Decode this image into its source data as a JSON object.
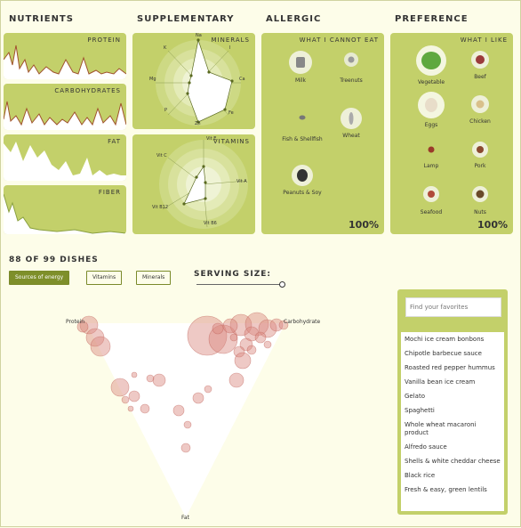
{
  "sections": {
    "nutrients": "NUTRIENTS",
    "supplementary": "SUPPLEMENTARY",
    "allergic": "ALLERGIC",
    "preference": "PREFERENCE"
  },
  "nutrient_panels": [
    "PROTEIN",
    "CARBOHYDRATES",
    "FAT",
    "FIBER"
  ],
  "supplementary_panels": {
    "minerals": {
      "label": "MINERALS",
      "axes": [
        "Na",
        "I",
        "Ca",
        "Fe",
        "Zn",
        "P",
        "Mg",
        "K"
      ]
    },
    "vitamins": {
      "label": "VITAMINS",
      "axes": [
        "Vit E",
        "Vit A",
        "Vit B6",
        "Vit B12",
        "Vit C"
      ]
    }
  },
  "allergic": {
    "header": "WHAT I CANNOT EAT",
    "items": [
      "Milk",
      "Treenuts",
      "Fish & Shellfish",
      "Wheat",
      "Peanuts & Soy"
    ],
    "percent": "100%"
  },
  "preference": {
    "header": "WHAT I LIKE",
    "items": [
      "Vegetable",
      "Beef",
      "Eggs",
      "Chicken",
      "Lamp",
      "Pork",
      "Seafood",
      "Nuts"
    ],
    "percent": "100%"
  },
  "dishes": {
    "count": "88",
    "of_label": "OF 99 DISHES",
    "buttons": [
      "Sources of energy",
      "Vitamins",
      "Minerals"
    ],
    "serving_label": "SERVING SIZE:"
  },
  "triangle": {
    "labels": [
      "Protein",
      "Carbohydrate",
      "Fat"
    ]
  },
  "favorites": {
    "placeholder": "Find your favorites",
    "items": [
      "Mochi ice cream bonbons",
      "Chipotle barbecue sauce",
      "Roasted red pepper hummus",
      "Vanilla bean ice cream",
      "Gelato",
      "Spaghetti",
      "Whole wheat macaroni product",
      "Alfredo sauce",
      "Shells & white cheddar cheese",
      "Black rice",
      "Fresh & easy, green lentils"
    ]
  },
  "colors": {
    "panel": "#c3d06a",
    "accent": "#7e8f2a",
    "bubble": "#d9877f",
    "background": "#fdfde9"
  }
}
